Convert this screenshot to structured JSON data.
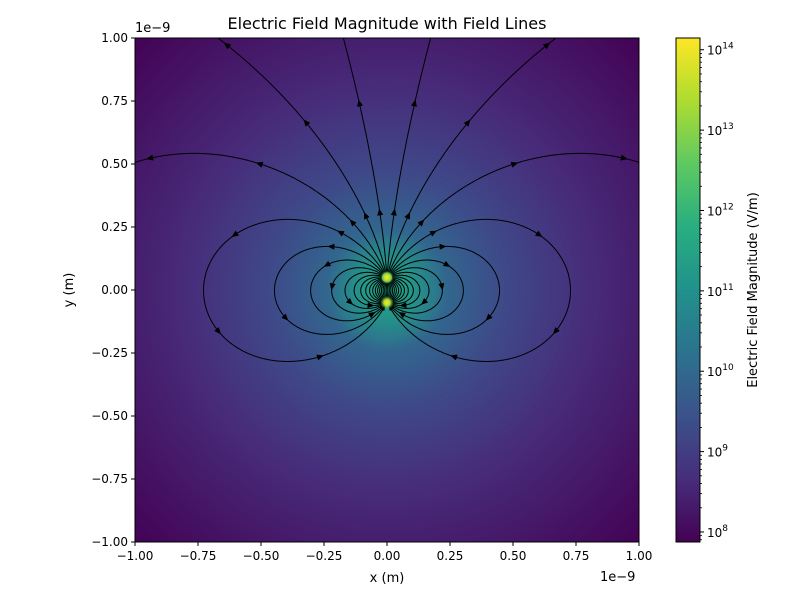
{
  "chart_data": {
    "type": "heatmap",
    "title": "Electric Field Magnitude with Field Lines",
    "xlabel": "x (m)",
    "ylabel": "y (m)",
    "x_scale_label": "1e−9",
    "y_scale_label": "1e−9",
    "xlim": [
      -1.0,
      1.0
    ],
    "ylim": [
      -1.0,
      1.0
    ],
    "x_ticks": [
      -1.0,
      -0.75,
      -0.5,
      -0.25,
      0.0,
      0.25,
      0.5,
      0.75,
      1.0
    ],
    "x_tick_labels": [
      "−1.00",
      "−0.75",
      "−0.50",
      "−0.25",
      "0.00",
      "0.25",
      "0.50",
      "0.75",
      "1.00"
    ],
    "y_ticks": [
      -1.0,
      -0.75,
      -0.5,
      -0.25,
      0.0,
      0.25,
      0.5,
      0.75,
      1.0
    ],
    "y_tick_labels": [
      "−1.00",
      "−0.75",
      "−0.50",
      "−0.25",
      "0.00",
      "0.25",
      "0.50",
      "0.75",
      "1.00"
    ],
    "grid": false,
    "colormap": "viridis",
    "colorbar": {
      "label": "Electric Field Magnitude (V/m)",
      "scale": "log",
      "range": [
        75000000.0,
        140000000000000.0
      ],
      "ticks": [
        {
          "value": 100000000.0,
          "base": "10",
          "exp": "8"
        },
        {
          "value": 1000000000.0,
          "base": "10",
          "exp": "9"
        },
        {
          "value": 10000000000.0,
          "base": "10",
          "exp": "10"
        },
        {
          "value": 100000000000.0,
          "base": "10",
          "exp": "11"
        },
        {
          "value": 1000000000000.0,
          "base": "10",
          "exp": "12"
        },
        {
          "value": 10000000000000.0,
          "base": "10",
          "exp": "13"
        },
        {
          "value": 100000000000000.0,
          "base": "10",
          "exp": "14"
        }
      ]
    },
    "charges": [
      {
        "x": 0.0,
        "y": 0.05
      },
      {
        "x": 0.0,
        "y": -0.05
      }
    ],
    "field_lines": {
      "color": "#000000",
      "style": "streamplot with arrows"
    }
  }
}
